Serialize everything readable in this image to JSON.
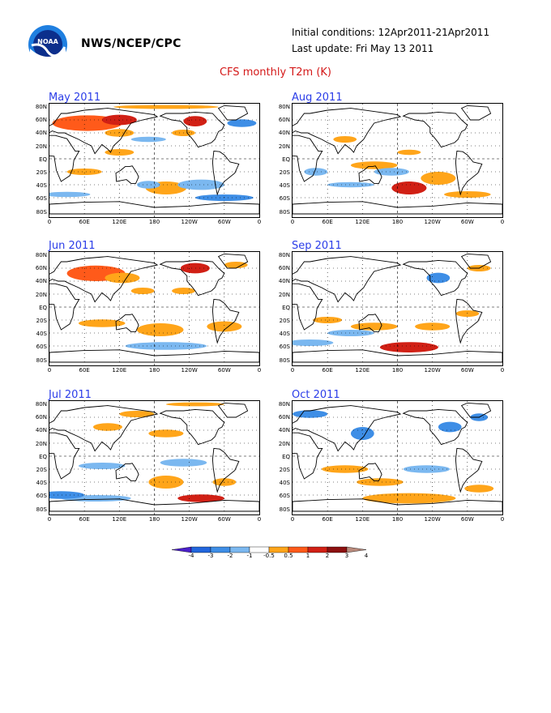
{
  "header": {
    "agency": "NWS/NCEP/CPC",
    "logo_name": "noaa-logo",
    "initial_conditions": "Initial conditions: 12Apr2011-21Apr2011",
    "last_update": "Last update: Fri May 13 2011",
    "title": "CFS monthly T2m (K)"
  },
  "lat_labels": [
    "80N",
    "60N",
    "40N",
    "20N",
    "EQ",
    "20S",
    "40S",
    "60S",
    "80S"
  ],
  "lon_labels": [
    "0",
    "60E",
    "120E",
    "180",
    "120W",
    "60W",
    "0"
  ],
  "panels": [
    {
      "title": "May 2011",
      "id": "may"
    },
    {
      "title": "Aug 2011",
      "id": "aug"
    },
    {
      "title": "Jun 2011",
      "id": "jun"
    },
    {
      "title": "Sep 2011",
      "id": "sep"
    },
    {
      "title": "Jul 2011",
      "id": "jul"
    },
    {
      "title": "Oct 2011",
      "id": "oct"
    }
  ],
  "colorbar": {
    "labels": [
      "-4",
      "-3",
      "-2",
      "-1",
      "-0.5",
      "0.5",
      "1",
      "2",
      "3",
      "4"
    ],
    "colors": [
      "#4a1fc9",
      "#2266dd",
      "#3e8ee6",
      "#7bb8f0",
      "#ffffff",
      "#ffa51a",
      "#ff5a1a",
      "#d12015",
      "#8c1010",
      "#b98a7c"
    ]
  }
}
